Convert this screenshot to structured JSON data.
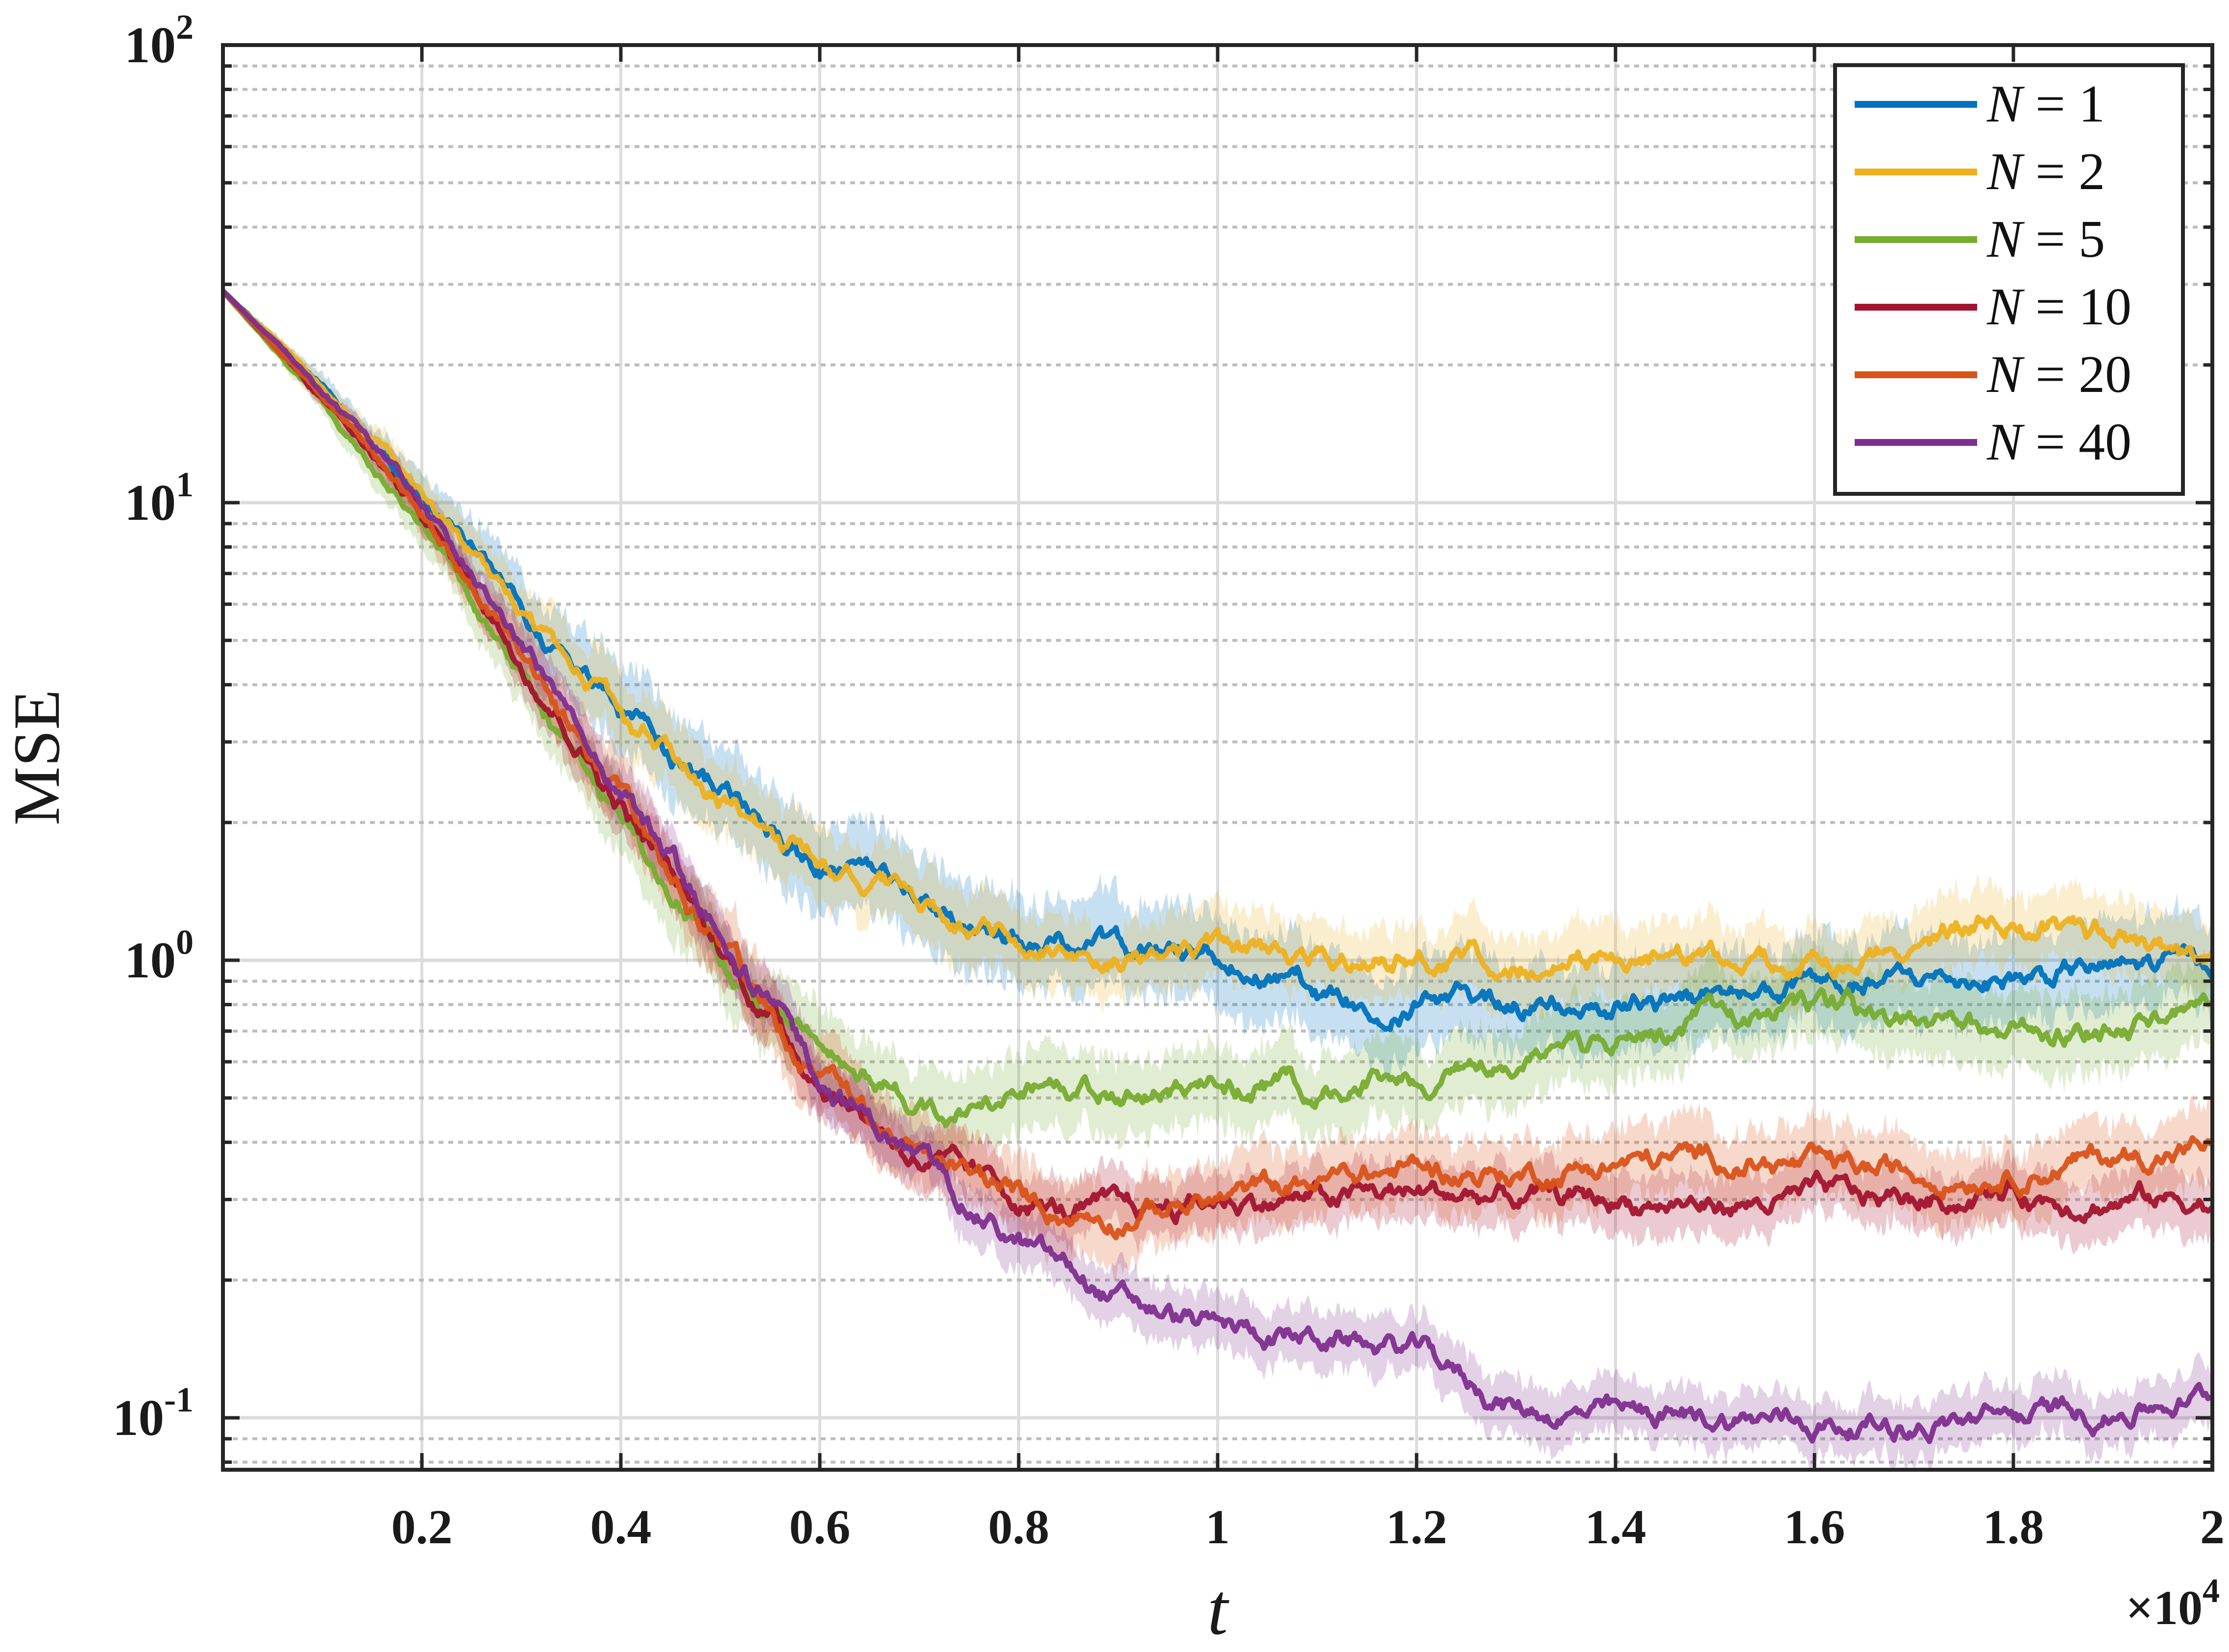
{
  "chart_data": {
    "type": "line",
    "xlabel": "t",
    "ylabel": "MSE",
    "x_multiplier_label": "×10^4",
    "x_multiplier_base": "×10",
    "x_multiplier_exp": "4",
    "xlim": [
      0,
      20000
    ],
    "ylim": [
      0.077,
      100
    ],
    "yscale": "log",
    "grid": true,
    "minor_grid": true,
    "legend_position": "top-right",
    "x_ticks": [
      2000,
      4000,
      6000,
      8000,
      10000,
      12000,
      14000,
      16000,
      18000,
      20000
    ],
    "x_tick_labels": [
      "0.2",
      "0.4",
      "0.6",
      "0.8",
      "1",
      "1.2",
      "1.4",
      "1.6",
      "1.8",
      "2"
    ],
    "y_ticks": [
      {
        "value": 0.1,
        "base": "10",
        "exp": "-1"
      },
      {
        "value": 1,
        "base": "10",
        "exp": "0"
      },
      {
        "value": 10,
        "base": "10",
        "exp": "1"
      },
      {
        "value": 100,
        "base": "10",
        "exp": "2"
      }
    ],
    "series": [
      {
        "name": "N = 1",
        "legend_var": "N",
        "legend_rest": "= 1",
        "color": "#0072BD",
        "band_scale": 1.25,
        "x": [
          0,
          1000,
          2000,
          3000,
          4000,
          5000,
          6000,
          7000,
          8000,
          9000,
          10000,
          10800,
          11200,
          12000,
          13000,
          14000,
          15000,
          16000,
          17000,
          18000,
          19000,
          20000
        ],
        "y": [
          29,
          18,
          10.5,
          5.8,
          3.5,
          2.3,
          1.6,
          1.3,
          1.1,
          1.05,
          1.0,
          0.92,
          0.8,
          0.82,
          0.8,
          0.8,
          0.82,
          0.85,
          0.9,
          0.92,
          0.95,
          1.0
        ]
      },
      {
        "name": "N = 2",
        "legend_var": "N",
        "legend_rest": "= 2",
        "color": "#EDB120",
        "band_scale": 1.2,
        "x": [
          0,
          1000,
          2000,
          3000,
          4000,
          5000,
          6000,
          7000,
          8000,
          9000,
          10000,
          11000,
          12000,
          13000,
          14000,
          15000,
          16000,
          17000,
          17500,
          18000,
          19000,
          20000
        ],
        "y": [
          29,
          18,
          10.5,
          5.8,
          3.5,
          2.3,
          1.6,
          1.3,
          1.1,
          1.02,
          1.03,
          1.0,
          1.02,
          1.0,
          1.0,
          1.0,
          0.98,
          1.1,
          1.22,
          1.25,
          1.1,
          0.97
        ]
      },
      {
        "name": "N = 5",
        "legend_var": "N",
        "legend_rest": "= 5",
        "color": "#77AC30",
        "band_scale": 1.22,
        "x": [
          0,
          1000,
          2000,
          3000,
          4000,
          5000,
          6000,
          6600,
          7200,
          8000,
          9000,
          10000,
          11000,
          12000,
          13000,
          14000,
          15000,
          16000,
          17000,
          18000,
          19000,
          20000
        ],
        "y": [
          29,
          16.5,
          8.8,
          4.2,
          2.0,
          1.0,
          0.62,
          0.55,
          0.47,
          0.5,
          0.52,
          0.51,
          0.52,
          0.55,
          0.6,
          0.65,
          0.75,
          0.78,
          0.72,
          0.68,
          0.72,
          0.78
        ]
      },
      {
        "name": "N = 10",
        "legend_var": "N",
        "legend_rest": "= 10",
        "color": "#A2142F",
        "band_scale": 1.16,
        "x": [
          0,
          1000,
          2000,
          3000,
          4000,
          5000,
          6000,
          7000,
          8000,
          8500,
          9000,
          10000,
          11000,
          12000,
          13000,
          14000,
          15000,
          16000,
          17000,
          18000,
          19000,
          20000
        ],
        "y": [
          29,
          17,
          9.5,
          4.6,
          2.2,
          1.05,
          0.55,
          0.37,
          0.3,
          0.28,
          0.28,
          0.3,
          0.3,
          0.31,
          0.3,
          0.3,
          0.29,
          0.3,
          0.3,
          0.31,
          0.3,
          0.3
        ]
      },
      {
        "name": "N = 20",
        "legend_var": "N",
        "legend_rest": "= 20",
        "color": "#D95319",
        "band_scale": 1.2,
        "x": [
          0,
          1000,
          2000,
          3000,
          4000,
          5000,
          6000,
          7000,
          8000,
          8500,
          9000,
          10000,
          11000,
          12000,
          13000,
          14000,
          15000,
          16000,
          17000,
          18000,
          19000,
          20000
        ],
        "y": [
          29,
          17,
          9.5,
          4.6,
          2.2,
          1.05,
          0.55,
          0.37,
          0.3,
          0.28,
          0.28,
          0.3,
          0.33,
          0.35,
          0.34,
          0.36,
          0.37,
          0.35,
          0.34,
          0.35,
          0.37,
          0.39
        ]
      },
      {
        "name": "N = 40",
        "legend_var": "N",
        "legend_rest": "= 40",
        "color": "#7E2F8E",
        "band_scale": 1.15,
        "x": [
          0,
          1000,
          2000,
          3000,
          4000,
          5000,
          6000,
          7000,
          8000,
          9000,
          10000,
          11000,
          12000,
          13000,
          14000,
          15000,
          16000,
          17000,
          18000,
          19000,
          20000
        ],
        "y": [
          29,
          17.5,
          10,
          5.0,
          2.4,
          1.15,
          0.56,
          0.36,
          0.24,
          0.18,
          0.155,
          0.15,
          0.14,
          0.105,
          0.1,
          0.1,
          0.098,
          0.097,
          0.1,
          0.104,
          0.112
        ]
      }
    ]
  }
}
